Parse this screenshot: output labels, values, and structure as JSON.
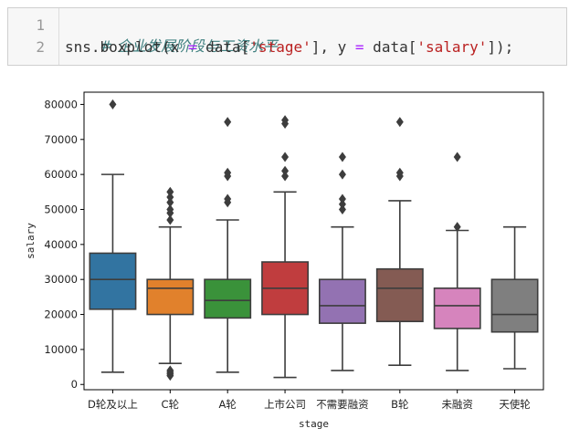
{
  "code_cell": {
    "line_numbers": [
      "1",
      "2"
    ],
    "comment": "# 企业发展阶段与工资水平",
    "code_prefix": "sns.boxplot(x ",
    "eq1": "=",
    "code_mid1": " data[",
    "str1": "'stage'",
    "code_mid2": "], y ",
    "eq2": "=",
    "code_mid3": " data[",
    "str2": "'salary'",
    "code_suffix": "]);"
  },
  "chart_data": {
    "type": "box",
    "xlabel": "stage",
    "ylabel": "salary",
    "ylim": [
      -1500,
      83500
    ],
    "yticks": [
      0,
      10000,
      20000,
      30000,
      40000,
      50000,
      60000,
      70000,
      80000
    ],
    "grid": false,
    "categories": [
      "D轮及以上",
      "C轮",
      "A轮",
      "上市公司",
      "不需要融资",
      "B轮",
      "未融资",
      "天使轮"
    ],
    "colors": [
      "#3274a1",
      "#e1812c",
      "#3a923a",
      "#c03d3e",
      "#9372b2",
      "#845b53",
      "#d684bd",
      "#7f7f7f"
    ],
    "boxes": [
      {
        "whisker_low": 3500,
        "q1": 21500,
        "median": 30000,
        "q3": 37500,
        "whisker_high": 60000,
        "outliers": [
          80000
        ]
      },
      {
        "whisker_low": 6000,
        "q1": 20000,
        "median": 27500,
        "q3": 30000,
        "whisker_high": 45000,
        "outliers": [
          2500,
          3000,
          3500,
          4000,
          47000,
          49000,
          50000,
          52000,
          53500,
          55000
        ]
      },
      {
        "whisker_low": 3500,
        "q1": 19000,
        "median": 24000,
        "q3": 30000,
        "whisker_high": 47000,
        "outliers": [
          52000,
          53000,
          59500,
          60500,
          75000
        ]
      },
      {
        "whisker_low": 2000,
        "q1": 20000,
        "median": 27500,
        "q3": 35000,
        "whisker_high": 55000,
        "outliers": [
          59500,
          61000,
          65000,
          74500,
          75500
        ]
      },
      {
        "whisker_low": 4000,
        "q1": 17500,
        "median": 22500,
        "q3": 30000,
        "whisker_high": 45000,
        "outliers": [
          50000,
          51500,
          53000,
          60000,
          65000
        ]
      },
      {
        "whisker_low": 5500,
        "q1": 18000,
        "median": 27500,
        "q3": 33000,
        "whisker_high": 52500,
        "outliers": [
          59500,
          60500,
          75000
        ]
      },
      {
        "whisker_low": 4000,
        "q1": 16000,
        "median": 22500,
        "q3": 27500,
        "whisker_high": 44000,
        "outliers": [
          45000,
          65000
        ]
      },
      {
        "whisker_low": 4500,
        "q1": 15000,
        "median": 20000,
        "q3": 30000,
        "whisker_high": 45000,
        "outliers": []
      }
    ]
  }
}
